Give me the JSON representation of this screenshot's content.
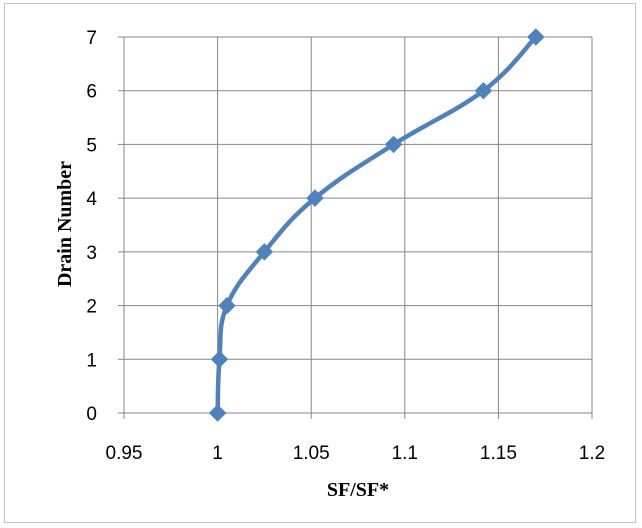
{
  "chart_data": {
    "type": "line",
    "title": "",
    "xlabel": "SF/SF*",
    "ylabel": "Drain Number",
    "xlim": [
      0.95,
      1.2
    ],
    "ylim": [
      0,
      7
    ],
    "x_ticks": [
      "0.95",
      "1",
      "1.05",
      "1.1",
      "1.15",
      "1.2"
    ],
    "y_ticks": [
      "0",
      "1",
      "2",
      "3",
      "4",
      "5",
      "6",
      "7"
    ],
    "grid": true,
    "legend": "none",
    "series": [
      {
        "color": "#4f81bd",
        "marker": "diamond",
        "points": [
          {
            "x": 1.0,
            "y": 0
          },
          {
            "x": 1.001,
            "y": 1
          },
          {
            "x": 1.005,
            "y": 2
          },
          {
            "x": 1.025,
            "y": 3
          },
          {
            "x": 1.052,
            "y": 4
          },
          {
            "x": 1.094,
            "y": 5
          },
          {
            "x": 1.142,
            "y": 6
          },
          {
            "x": 1.17,
            "y": 7
          }
        ]
      }
    ]
  }
}
